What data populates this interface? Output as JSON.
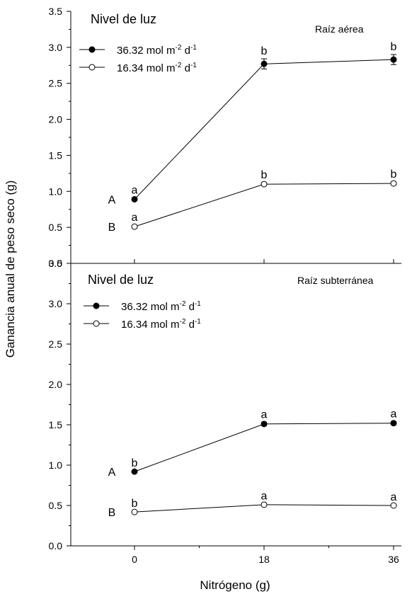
{
  "colors": {
    "line": "#000000",
    "filled_marker": "#000000",
    "open_marker": "#ffffff"
  },
  "chart_data": {
    "type": "line",
    "ylabel": "Ganancia anual de peso seco (g)",
    "xlabel": "Nitrógeno (g)",
    "x": [
      0,
      18,
      36
    ],
    "xtick_labels": [
      "0",
      "18",
      "36"
    ],
    "panels": [
      {
        "panel_label": "Raíz aérea",
        "legend_title": "Nivel de luz",
        "legend_position": "top-left",
        "ylim": [
          0,
          3.5
        ],
        "ytick_labels": [
          "0.0",
          "0.5",
          "1.0",
          "1.5",
          "2.0",
          "2.5",
          "3.0",
          "3.5"
        ],
        "series": [
          {
            "marker": "filled-circle",
            "legend": {
              "value": "36.32",
              "text": "mol m",
              "exp1": "-2",
              "mid": "d",
              "exp2": "-1"
            },
            "values": [
              0.89,
              2.77,
              2.83
            ],
            "errors": [
              0.02,
              0.07,
              0.07
            ],
            "letters": [
              "a",
              "b",
              "b"
            ],
            "group_label": "A"
          },
          {
            "marker": "open-circle",
            "legend": {
              "value": "16.34",
              "text": "mol m",
              "exp1": "-2",
              "mid": "d",
              "exp2": "-1"
            },
            "values": [
              0.51,
              1.1,
              1.11
            ],
            "errors": [
              0.02,
              0.02,
              0.02
            ],
            "letters": [
              "a",
              "b",
              "b"
            ],
            "group_label": "B"
          }
        ]
      },
      {
        "panel_label": "Raíz subterránea",
        "legend_title": "Nivel de luz",
        "legend_position": "top-left",
        "ylim": [
          0,
          3.5
        ],
        "ytick_labels": [
          "0.0",
          "0.5",
          "1.0",
          "1.5",
          "2.0",
          "2.5",
          "3.0",
          "3.5"
        ],
        "series": [
          {
            "marker": "filled-circle",
            "legend": {
              "value": "36.32",
              "text": "mol m",
              "exp1": "-2",
              "mid": "d",
              "exp2": "-1"
            },
            "values": [
              0.92,
              1.51,
              1.52
            ],
            "errors": [
              0.01,
              0.02,
              0.02
            ],
            "letters": [
              "b",
              "a",
              "a"
            ],
            "group_label": "A"
          },
          {
            "marker": "open-circle",
            "legend": {
              "value": "16.34",
              "text": "mol m",
              "exp1": "-2",
              "mid": "d",
              "exp2": "-1"
            },
            "values": [
              0.42,
              0.51,
              0.5
            ],
            "errors": [
              0.01,
              0.01,
              0.01
            ],
            "letters": [
              "b",
              "a",
              "a"
            ],
            "group_label": "B"
          }
        ]
      }
    ]
  }
}
